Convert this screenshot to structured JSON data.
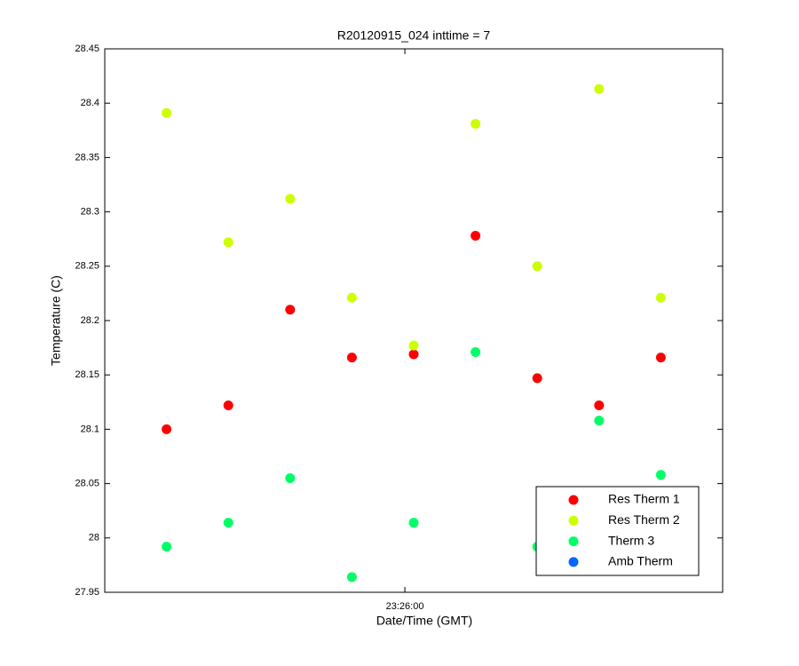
{
  "chart_data": {
    "type": "scatter",
    "title": "R20120915_024 inttime = 7",
    "xlabel": "Date/Time (GMT)",
    "ylabel": "Temperature (C)",
    "x": [
      "23:25:33",
      "23:25:40",
      "23:25:47",
      "23:25:54",
      "23:26:01",
      "23:26:08",
      "23:26:15",
      "23:26:22",
      "23:26:29"
    ],
    "xlim": [
      "23:25:26",
      "23:26:36"
    ],
    "xticks": [
      "23:26:00"
    ],
    "ylim": [
      27.95,
      28.45
    ],
    "yticks": [
      27.95,
      28,
      28.05,
      28.1,
      28.15,
      28.2,
      28.25,
      28.3,
      28.35,
      28.4,
      28.45
    ],
    "legend": "lower right",
    "series": [
      {
        "name": "Res Therm 1",
        "color": "#ff0000",
        "values": [
          28.1,
          28.122,
          28.21,
          28.166,
          28.169,
          28.278,
          28.147,
          28.122,
          28.166
        ]
      },
      {
        "name": "Res Therm 2",
        "color": "#ccff00",
        "values": [
          28.391,
          28.272,
          28.312,
          28.221,
          28.177,
          28.381,
          28.25,
          28.413,
          28.221
        ]
      },
      {
        "name": "Therm 3",
        "color": "#00ff66",
        "values": [
          27.992,
          28.014,
          28.055,
          27.964,
          28.014,
          28.171,
          27.992,
          28.108,
          28.058
        ]
      },
      {
        "name": "Amb Therm",
        "color": "#0066ff",
        "values": [
          null,
          null,
          null,
          null,
          null,
          null,
          null,
          null,
          null
        ]
      }
    ]
  }
}
